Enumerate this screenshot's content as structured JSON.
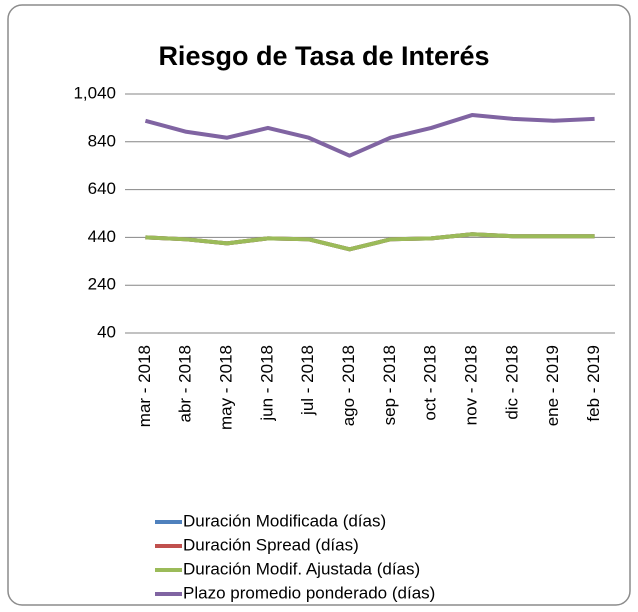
{
  "chart_data": {
    "type": "line",
    "title": "Riesgo de Tasa de Interés",
    "categories": [
      "mar - 2018",
      "abr - 2018",
      "may - 2018",
      "jun - 2018",
      "jul - 2018",
      "ago - 2018",
      "sep - 2018",
      "oct - 2018",
      "nov - 2018",
      "dic - 2018",
      "ene - 2019",
      "feb - 2019"
    ],
    "series": [
      {
        "name": "Duración Modificada (días)",
        "color": "#4f81bd",
        "values": [
          440,
          432,
          415,
          436,
          432,
          390,
          432,
          436,
          453,
          445,
          445,
          445
        ]
      },
      {
        "name": "Duración Spread (días)",
        "color": "#c0504d",
        "values": [
          440,
          432,
          415,
          436,
          432,
          390,
          432,
          436,
          453,
          445,
          445,
          445
        ]
      },
      {
        "name": "Duración Modif. Ajustada (días)",
        "color": "#9bbb59",
        "values": [
          440,
          432,
          415,
          436,
          432,
          390,
          432,
          436,
          453,
          445,
          445,
          445
        ]
      },
      {
        "name": "Plazo promedio ponderado (días)",
        "color": "#8064a2",
        "values": [
          928,
          882,
          857,
          898,
          857,
          782,
          857,
          898,
          952,
          936,
          928,
          936
        ]
      }
    ],
    "ylim": [
      40,
      1040
    ],
    "yticks": [
      40,
      240,
      440,
      640,
      840,
      {
        "value": 1040,
        "label": "1,040"
      }
    ],
    "grid": true,
    "legend": "bottom"
  }
}
